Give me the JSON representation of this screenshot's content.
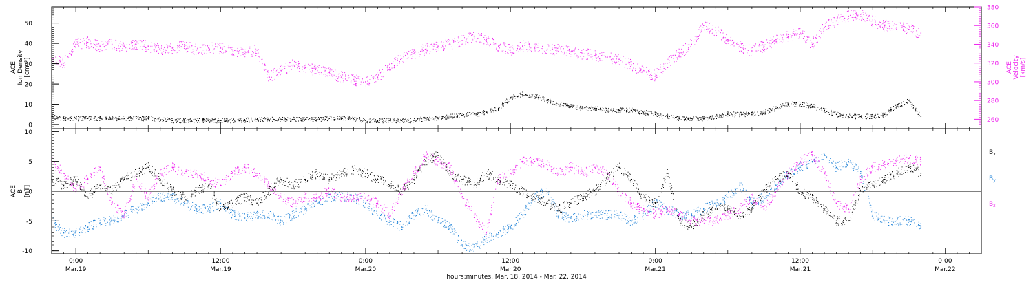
{
  "colors": {
    "background": "#ffffff",
    "axis": "#000000",
    "density": "#000000",
    "velocity": "#ee22ee",
    "bx": "#000000",
    "by": "#1a7fd6",
    "bz": "#ee22ee"
  },
  "x_axis": {
    "label": "hours:minutes, Mar. 18, 2014 - Mar. 22, 2014",
    "ticks": [
      {
        "hours": 2,
        "time": "0:00",
        "date": "Mar.19"
      },
      {
        "hours": 14,
        "time": "12:00",
        "date": "Mar.19"
      },
      {
        "hours": 26,
        "time": "0:00",
        "date": "Mar.20"
      },
      {
        "hours": 38,
        "time": "12:00",
        "date": "Mar.20"
      },
      {
        "hours": 50,
        "time": "0:00",
        "date": "Mar.21"
      },
      {
        "hours": 62,
        "time": "12:00",
        "date": "Mar.21"
      },
      {
        "hours": 74,
        "time": "0:00",
        "date": "Mar.22"
      }
    ]
  },
  "chart_data": [
    {
      "type": "scatter",
      "panel": "plasma",
      "x_unit": "hours since Mar. 18, 2014 22:00",
      "xlim": [
        0,
        77
      ],
      "left_axis": {
        "label_lines": [
          "ACE",
          "Ion Density",
          "[cm⁻³]"
        ],
        "ylim": [
          -2,
          58
        ],
        "ticks": [
          0,
          10,
          20,
          30,
          40,
          50
        ]
      },
      "right_axis": {
        "label_lines": [
          "ACE",
          "Velocity",
          "[km/s]"
        ],
        "ylim": [
          250,
          380
        ],
        "ticks": [
          260,
          280,
          300,
          320,
          340,
          360,
          380
        ]
      },
      "series": [
        {
          "key": "density",
          "axis": "left",
          "x": [
            0,
            1,
            2,
            3,
            4,
            5,
            6,
            7,
            8,
            9,
            10,
            11,
            12,
            13,
            14,
            15,
            16,
            17,
            18,
            19,
            20,
            21,
            22,
            23,
            24,
            25,
            26,
            27,
            28,
            29,
            30,
            31,
            32,
            33,
            34,
            35,
            36,
            37,
            38,
            39,
            40,
            41,
            42,
            43,
            44,
            45,
            46,
            47,
            48,
            49,
            50,
            51,
            52,
            53,
            54,
            55,
            56,
            57,
            58,
            59,
            60,
            61,
            62,
            63,
            64,
            65,
            66,
            67,
            68,
            69,
            70,
            71,
            72
          ],
          "y": [
            4,
            3,
            3,
            3,
            3,
            3,
            3,
            3,
            3,
            2.5,
            2,
            2,
            2,
            2,
            2,
            2,
            2,
            2.5,
            2.5,
            2.5,
            2.5,
            2.5,
            2.5,
            3,
            3,
            3,
            2,
            2,
            2,
            2,
            2,
            3,
            3,
            4,
            4.5,
            5,
            6,
            8,
            13,
            15,
            14,
            12,
            10,
            9,
            8,
            8,
            7,
            7,
            7,
            6,
            5,
            4,
            3,
            3,
            3,
            4,
            5,
            5,
            5,
            6,
            8,
            10,
            10,
            9,
            7,
            5,
            4,
            4,
            4,
            5,
            9,
            12,
            4
          ]
        },
        {
          "key": "velocity",
          "axis": "right",
          "x": [
            0,
            1,
            2,
            3,
            4,
            5,
            6,
            7,
            8,
            9,
            10,
            11,
            12,
            13,
            14,
            15,
            16,
            17,
            18,
            19,
            20,
            21,
            22,
            23,
            24,
            25,
            26,
            27,
            28,
            29,
            30,
            31,
            32,
            33,
            34,
            35,
            36,
            37,
            38,
            39,
            40,
            41,
            42,
            43,
            44,
            45,
            46,
            47,
            48,
            49,
            50,
            51,
            52,
            53,
            54,
            55,
            56,
            57,
            58,
            59,
            60,
            61,
            62,
            63,
            64,
            65,
            66,
            67,
            68,
            69,
            70,
            71,
            72
          ],
          "y": [
            325,
            320,
            340,
            342,
            338,
            340,
            338,
            340,
            338,
            334,
            336,
            338,
            334,
            336,
            336,
            334,
            330,
            334,
            305,
            312,
            318,
            315,
            312,
            310,
            305,
            302,
            300,
            305,
            315,
            325,
            330,
            335,
            338,
            340,
            344,
            348,
            345,
            338,
            334,
            338,
            336,
            334,
            334,
            332,
            330,
            328,
            326,
            324,
            318,
            312,
            306,
            320,
            330,
            340,
            360,
            355,
            345,
            338,
            333,
            338,
            345,
            348,
            352,
            340,
            358,
            365,
            370,
            372,
            365,
            360,
            358,
            356,
            352
          ]
        }
      ]
    },
    {
      "type": "scatter",
      "panel": "magnetic",
      "x_unit": "hours since Mar. 18, 2014 22:00",
      "xlim": [
        0,
        77
      ],
      "left_axis": {
        "label_lines": [
          "ACE",
          "B",
          "[nT]"
        ],
        "ylim": [
          -10.5,
          10.5
        ],
        "ticks": [
          -10,
          -5,
          0,
          5,
          10
        ]
      },
      "reference_line": 0,
      "series": [
        {
          "key": "bx",
          "name": "B",
          "subscript": "x",
          "x": [
            0,
            1,
            2,
            3,
            4,
            5,
            6,
            7,
            8,
            9,
            10,
            11,
            12,
            13,
            14,
            15,
            16,
            17,
            18,
            19,
            20,
            21,
            22,
            23,
            24,
            25,
            26,
            27,
            28,
            29,
            30,
            31,
            32,
            33,
            34,
            35,
            36,
            37,
            38,
            39,
            40,
            41,
            42,
            43,
            44,
            45,
            46,
            47,
            48,
            49,
            50,
            51,
            52,
            53,
            54,
            55,
            56,
            57,
            58,
            59,
            60,
            61,
            62,
            63,
            64,
            65,
            66,
            67,
            68,
            69,
            70,
            71,
            72
          ],
          "y": [
            2,
            1,
            2,
            -1,
            1,
            0,
            2,
            3,
            4,
            2,
            0,
            -1,
            0,
            1,
            -3,
            -2,
            -1,
            -2,
            0,
            2,
            1,
            2,
            3,
            2,
            3,
            3.5,
            3,
            2,
            1,
            0,
            2,
            5,
            6,
            3,
            2,
            1,
            3,
            2,
            1,
            0,
            -1,
            -2,
            -3,
            -2,
            -1,
            0,
            2,
            4,
            2,
            -1,
            -2,
            3,
            -5,
            -6,
            -4,
            -3,
            -3,
            -4,
            -3,
            0,
            2,
            3,
            0,
            -1,
            -3,
            -5,
            -5,
            0,
            1,
            2,
            3,
            4,
            3
          ]
        },
        {
          "key": "by",
          "name": "B",
          "subscript": "y",
          "x": [
            0,
            1,
            2,
            3,
            4,
            5,
            6,
            7,
            8,
            9,
            10,
            11,
            12,
            13,
            14,
            15,
            16,
            17,
            18,
            19,
            20,
            21,
            22,
            23,
            24,
            25,
            26,
            27,
            28,
            29,
            30,
            31,
            32,
            33,
            34,
            35,
            36,
            37,
            38,
            39,
            40,
            41,
            42,
            43,
            44,
            45,
            46,
            47,
            48,
            49,
            50,
            51,
            52,
            53,
            54,
            55,
            56,
            57,
            58,
            59,
            60,
            61,
            62,
            63,
            64,
            65,
            66,
            67,
            68,
            69,
            70,
            71,
            72
          ],
          "y": [
            -5,
            -7,
            -7,
            -6,
            -5,
            -5,
            -4,
            -3,
            -2,
            -1,
            -1,
            -2,
            -3,
            -3,
            -2,
            -4,
            -4.5,
            -4,
            -4,
            -5,
            -4,
            -3,
            -2,
            -1,
            -1,
            -1,
            -2,
            -4,
            -5,
            -6,
            -4,
            -3,
            -5,
            -6,
            -9,
            -9.5,
            -8,
            -7,
            -6,
            -4,
            -1,
            0,
            -4,
            -4.5,
            -4,
            -4,
            -4,
            -4,
            -5,
            -4,
            -2,
            -3,
            -4,
            -4,
            -3,
            -2,
            -1,
            1,
            -2,
            -1,
            1,
            3,
            4,
            5,
            6,
            4,
            5,
            3,
            -4,
            -5,
            -5,
            -5,
            -6
          ]
        },
        {
          "key": "bz",
          "name": "B",
          "subscript": "z",
          "x": [
            0,
            1,
            2,
            3,
            4,
            5,
            6,
            7,
            8,
            9,
            10,
            11,
            12,
            13,
            14,
            15,
            16,
            17,
            18,
            19,
            20,
            21,
            22,
            23,
            24,
            25,
            26,
            27,
            28,
            29,
            30,
            31,
            32,
            33,
            34,
            35,
            36,
            37,
            38,
            39,
            40,
            41,
            42,
            43,
            44,
            45,
            46,
            47,
            48,
            49,
            50,
            51,
            52,
            53,
            54,
            55,
            56,
            57,
            58,
            59,
            60,
            61,
            62,
            63,
            64,
            65,
            66,
            67,
            68,
            69,
            70,
            71,
            72
          ],
          "y": [
            5,
            3,
            0,
            2,
            4,
            -2,
            -4,
            2,
            -1,
            3,
            4,
            3,
            3,
            2,
            1,
            3,
            4,
            3,
            1,
            -1,
            -2,
            -1,
            -1,
            0,
            -1,
            -1,
            -1,
            -2,
            -4,
            0,
            3,
            6,
            5,
            4,
            -1,
            -4,
            -7,
            2,
            3,
            5,
            5,
            4.5,
            3,
            4,
            3,
            4,
            3,
            0,
            -2,
            -3,
            -4,
            -3,
            -4,
            -5,
            -5,
            -5,
            -4,
            -3,
            -1,
            -3,
            0,
            3,
            5,
            6,
            3,
            -2,
            -3,
            2,
            4,
            4.5,
            5,
            5.5,
            5
          ]
        }
      ]
    }
  ]
}
